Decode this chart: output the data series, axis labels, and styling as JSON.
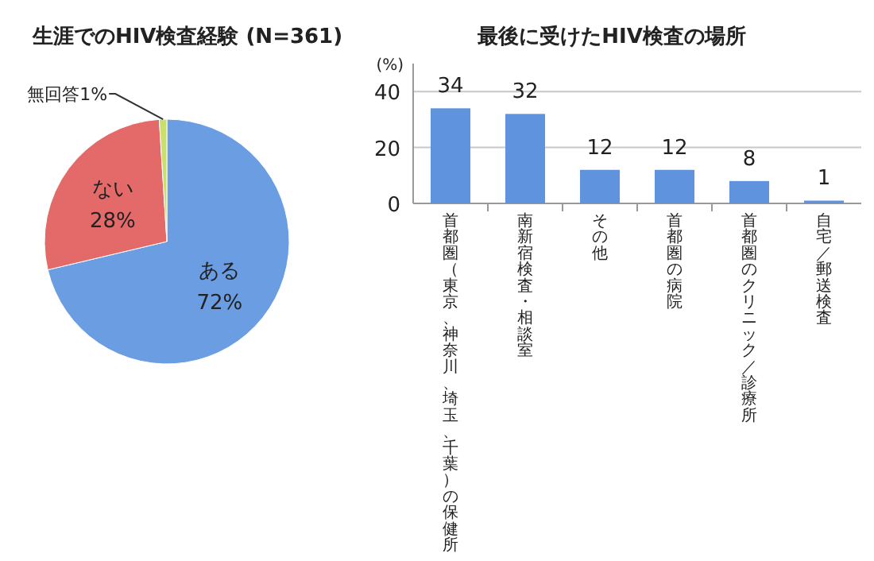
{
  "chart_data": [
    {
      "type": "pie",
      "title": "生涯でのHIV検査経験 (N=361)",
      "categories": [
        "ある",
        "ない",
        "無回答"
      ],
      "values": [
        72,
        28,
        1
      ],
      "value_labels": [
        "72%",
        "28%",
        "1%"
      ],
      "colors": [
        "#6b9de3",
        "#e46a6a",
        "#c9df6e"
      ]
    },
    {
      "type": "bar",
      "title": "最後に受けたHIV検査の場所",
      "ylabel": "(%)",
      "categories": [
        "首都圏（東京、神奈川、埼玉、千葉）の保健所",
        "南新宿検査・相談室",
        "その他",
        "首都圏の病院",
        "首都圏のクリニック／診療所",
        "自宅／郵送検査"
      ],
      "values": [
        34,
        32,
        12,
        12,
        8,
        1
      ],
      "color": "#5f93de",
      "ylim": [
        0,
        50
      ],
      "yticks": [
        0,
        20,
        40
      ],
      "grid": "y",
      "data_labels": true
    }
  ]
}
